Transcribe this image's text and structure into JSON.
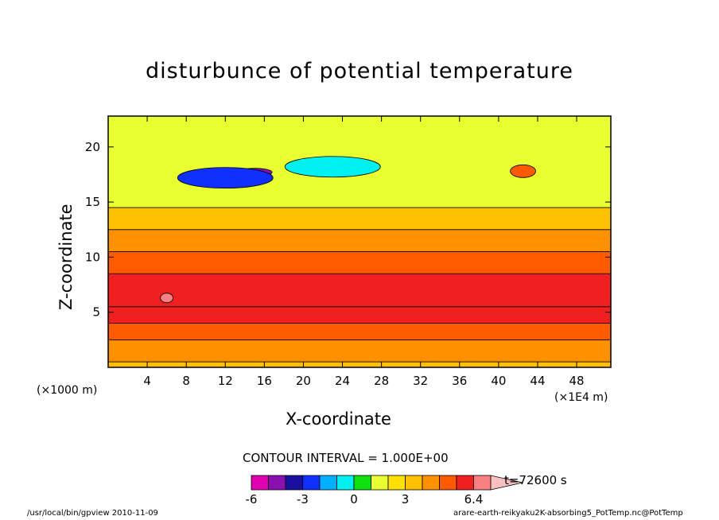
{
  "chart_data": {
    "type": "heatmap",
    "title": "disturbunce of potential temperature",
    "xlabel": "X-coordinate",
    "ylabel": "Z-coordinate",
    "x_unit_left": "(×1000 m)",
    "x_unit_right": "(×1E4 m)",
    "xlim": [
      0,
      51.5
    ],
    "ylim": [
      0,
      22.8
    ],
    "xticks": [
      "4",
      "8",
      "12",
      "16",
      "20",
      "24",
      "28",
      "32",
      "36",
      "40",
      "44",
      "48"
    ],
    "xtick_values": [
      4,
      8,
      12,
      16,
      20,
      24,
      28,
      32,
      36,
      40,
      44,
      48
    ],
    "yticks": [
      "5",
      "10",
      "15",
      "20"
    ],
    "ytick_values": [
      5,
      10,
      15,
      20
    ],
    "contour_interval_text": "CONTOUR INTERVAL = 1.000E+00",
    "time_label": "t=72600 s",
    "colorbar": {
      "levels": [
        -6,
        -5,
        -4,
        -3,
        -2,
        -1,
        0,
        1,
        2,
        3,
        4,
        5,
        6,
        6.4
      ],
      "tick_labels": [
        "-6",
        "-3",
        "0",
        "3",
        "6.4"
      ],
      "tick_values": [
        -6,
        -3,
        0,
        3,
        6.4
      ],
      "colors": [
        "#e000b0",
        "#8a10b0",
        "#1a10a0",
        "#1030ff",
        "#00b0ff",
        "#00f0f0",
        "#10e010",
        "#e8ff30",
        "#ffe000",
        "#ffc000",
        "#ff9000",
        "#ff5a00",
        "#f02020",
        "#f88080",
        "#f8c0c0"
      ]
    },
    "bands": [
      {
        "z": [
          0.0,
          0.5
        ],
        "value": 2
      },
      {
        "z": [
          0.5,
          2.5
        ],
        "value": 3
      },
      {
        "z": [
          2.5,
          4.0
        ],
        "value": 4
      },
      {
        "z": [
          4.0,
          5.5
        ],
        "value": 5
      },
      {
        "z": [
          5.5,
          8.5
        ],
        "value": 5.5
      },
      {
        "z": [
          8.5,
          10.5
        ],
        "value": 4
      },
      {
        "z": [
          10.5,
          12.5
        ],
        "value": 3
      },
      {
        "z": [
          12.5,
          14.5
        ],
        "value": 2
      },
      {
        "z": [
          14.5,
          22.8
        ],
        "value": 0
      }
    ],
    "features": [
      {
        "kind": "neg_max",
        "x": 15,
        "z": 17.7,
        "value": -6
      },
      {
        "kind": "neg",
        "x": 12,
        "z": 17.2,
        "value": -4
      },
      {
        "kind": "neg",
        "x": 23,
        "z": 18.2,
        "value": -2
      },
      {
        "kind": "pos_max",
        "x": 42.5,
        "z": 17.8,
        "value": 4
      },
      {
        "kind": "pos",
        "x": 6,
        "z": 6.3,
        "value": 6
      }
    ]
  },
  "footer": {
    "left": "/usr/local/bin/gpview  2010-11-09",
    "right": "arare-earth-reikyaku2K-absorbing5_PotTemp.nc@PotTemp"
  }
}
